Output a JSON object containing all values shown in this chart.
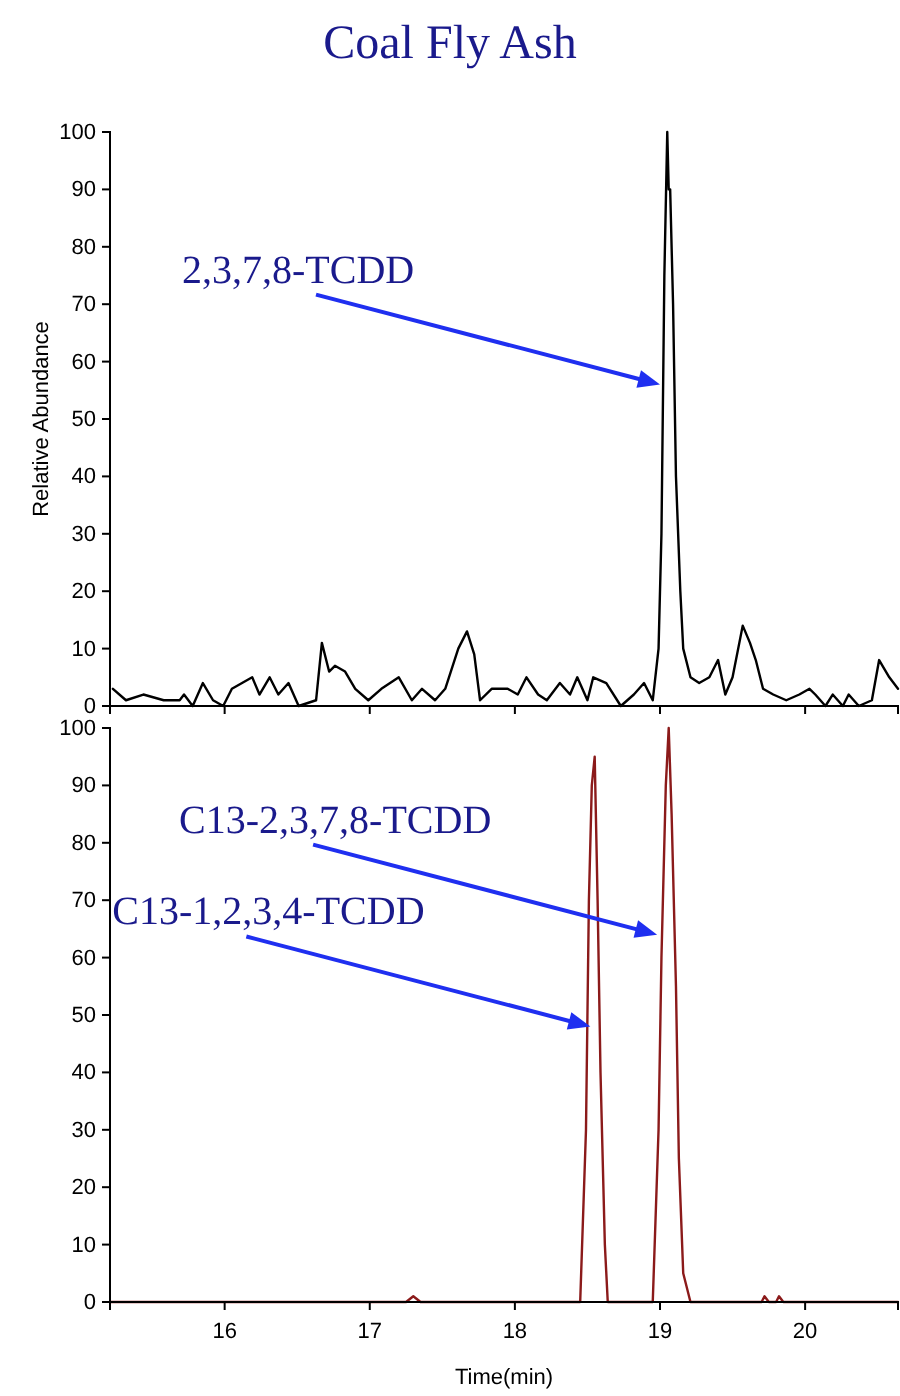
{
  "chart_data": [
    {
      "type": "line",
      "title": "Coal Fly Ash",
      "ylabel": "Relative Abundance",
      "xlim": [
        15.21,
        20.64
      ],
      "xticks": [
        16,
        17,
        18,
        19,
        20
      ],
      "ylim": [
        0,
        100
      ],
      "yticks": [
        0,
        10,
        20,
        30,
        40,
        50,
        60,
        70,
        80,
        90,
        100
      ],
      "tick_labels": "y",
      "marker": "none",
      "line_style": "solid",
      "annotations": [
        {
          "text": "2,3,7,8-TCDD",
          "x": 19.0,
          "y": 56
        }
      ],
      "series": [
        {
          "color": "#000000",
          "x": [
            15.23,
            15.32,
            15.44,
            15.58,
            15.69,
            15.72,
            15.78,
            15.85,
            15.92,
            15.99,
            16.05,
            16.12,
            16.19,
            16.24,
            16.31,
            16.37,
            16.44,
            16.51,
            16.63,
            16.67,
            16.72,
            16.76,
            16.83,
            16.9,
            16.99,
            17.08,
            17.2,
            17.29,
            17.36,
            17.45,
            17.52,
            17.61,
            17.67,
            17.72,
            17.76,
            17.84,
            17.95,
            18.02,
            18.08,
            18.16,
            18.22,
            18.31,
            18.38,
            18.43,
            18.5,
            18.54,
            18.63,
            18.73,
            18.82,
            18.89,
            18.95,
            18.99,
            19.01,
            19.03,
            19.05,
            19.06,
            19.07,
            19.09,
            19.11,
            19.14,
            19.16,
            19.21,
            19.27,
            19.34,
            19.4,
            19.45,
            19.5,
            19.57,
            19.62,
            19.66,
            19.71,
            19.78,
            19.87,
            19.96,
            20.03,
            20.07,
            20.14,
            20.19,
            20.26,
            20.3,
            20.37,
            20.46,
            20.51,
            20.58,
            20.64
          ],
          "values": [
            3,
            1,
            2,
            1,
            1,
            2,
            0,
            4,
            1,
            0,
            3,
            4,
            5,
            2,
            5,
            2,
            4,
            0,
            1,
            11,
            6,
            7,
            6,
            3,
            1,
            3,
            5,
            1,
            3,
            1,
            3,
            10,
            13,
            9,
            1,
            3,
            3,
            2,
            5,
            2,
            1,
            4,
            2,
            5,
            1,
            5,
            4,
            0,
            2,
            4,
            1,
            10,
            30,
            75,
            100,
            90,
            90,
            70,
            40,
            20,
            10,
            5,
            4,
            5,
            8,
            2,
            5,
            14,
            11,
            8,
            3,
            2,
            1,
            2,
            3,
            2,
            0,
            2,
            0,
            2,
            0,
            1,
            8,
            5,
            3
          ]
        }
      ]
    },
    {
      "type": "line",
      "xlabel": "Time(min)",
      "xlim": [
        15.21,
        20.64
      ],
      "xticks": [
        16,
        17,
        18,
        19,
        20
      ],
      "ylim": [
        0,
        100
      ],
      "yticks": [
        0,
        10,
        20,
        30,
        40,
        50,
        60,
        70,
        80,
        90,
        100
      ],
      "marker": "none",
      "line_style": "solid",
      "annotations": [
        {
          "text": "C13-2,3,7,8-TCDD",
          "x": 18.98,
          "y": 64
        },
        {
          "text": "C13-1,2,3,4-TCDD",
          "x": 18.52,
          "y": 48
        }
      ],
      "series": [
        {
          "color": "#8b1a1a",
          "x": [
            15.21,
            16.5,
            17.25,
            17.3,
            17.35,
            18.2,
            18.45,
            18.49,
            18.51,
            18.53,
            18.55,
            18.57,
            18.59,
            18.62,
            18.64,
            18.95,
            18.99,
            19.01,
            19.04,
            19.06,
            19.08,
            19.11,
            19.13,
            19.16,
            19.21,
            19.7,
            19.72,
            19.75,
            19.8,
            19.82,
            19.85,
            20.64
          ],
          "values": [
            0,
            0,
            0,
            1,
            0,
            0,
            0,
            30,
            70,
            90,
            95,
            70,
            40,
            10,
            0,
            0,
            30,
            60,
            90,
            100,
            85,
            55,
            25,
            5,
            0,
            0,
            1,
            0,
            0,
            1,
            0,
            0
          ]
        }
      ]
    }
  ]
}
